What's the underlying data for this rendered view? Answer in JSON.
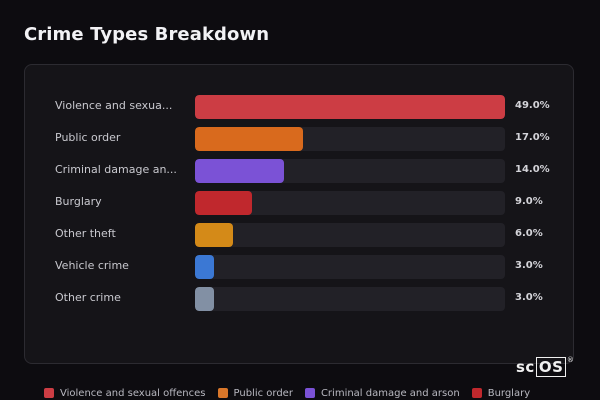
{
  "title": "Crime Types Breakdown",
  "colors": {
    "background": "#0d0c10",
    "panel": "#151418",
    "track": "#222127"
  },
  "chart_data": {
    "type": "bar",
    "orientation": "horizontal",
    "title": "Crime Types Breakdown",
    "categories": [
      "Violence and sexual offences",
      "Public order",
      "Criminal damage and arson",
      "Burglary",
      "Other theft",
      "Vehicle crime",
      "Other crime"
    ],
    "display_labels": [
      "Violence and sexua...",
      "Public order",
      "Criminal damage an...",
      "Burglary",
      "Other theft",
      "Vehicle crime",
      "Other crime"
    ],
    "values": [
      49.0,
      17.0,
      14.0,
      9.0,
      6.0,
      3.0,
      3.0
    ],
    "value_labels": [
      "49.0%",
      "17.0%",
      "14.0%",
      "9.0%",
      "6.0%",
      "3.0%",
      "3.0%"
    ],
    "colors": [
      "#cc3d44",
      "#d96a1d",
      "#7b52d6",
      "#c0282d",
      "#d48a18",
      "#3b78d4",
      "#8290a4"
    ],
    "xlim": [
      0,
      49.0
    ],
    "grid": false,
    "legend": {
      "placement": "bottom",
      "entries": [
        {
          "label": "Violence and sexual offences",
          "color": "#cc3d44"
        },
        {
          "label": "Public order",
          "color": "#d9772a"
        },
        {
          "label": "Criminal damage and arson",
          "color": "#7b52d6"
        },
        {
          "label": "Burglary",
          "color": "#c0282d"
        }
      ]
    }
  },
  "watermark": {
    "text_sc": "sc",
    "text_os": "OS",
    "reg": "®"
  }
}
